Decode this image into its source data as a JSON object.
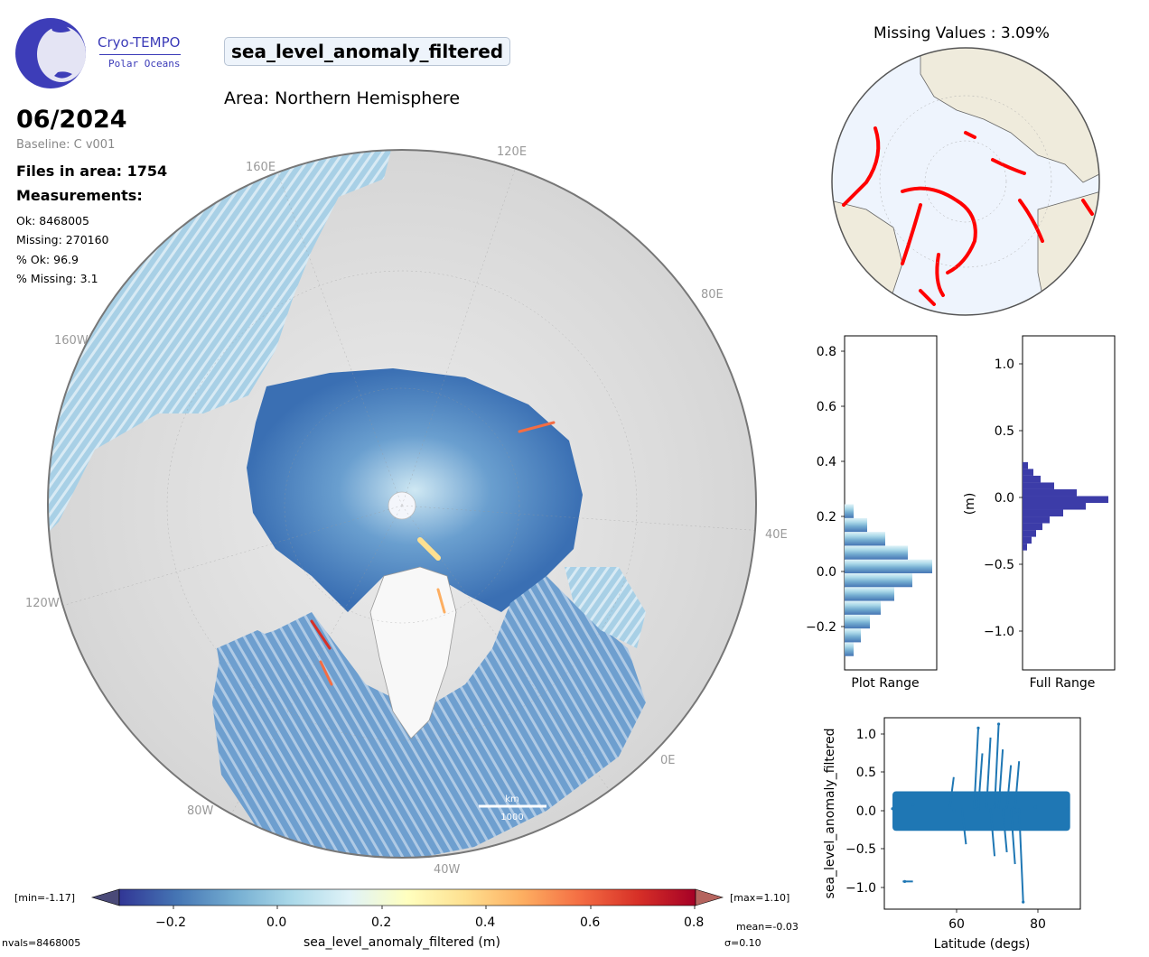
{
  "logo": {
    "line1": "Cryo-TEMPO",
    "line2": "Polar Oceans"
  },
  "variable_name": "sea_level_anomaly_filtered",
  "area_label": "Area: Northern Hemisphere",
  "date": "06/2024",
  "baseline": "Baseline: C v001",
  "files_in_area": "Files in area: 1754",
  "measurements_heading": "Measurements:",
  "stats": {
    "ok": "Ok: 8468005",
    "missing": "Missing: 270160",
    "pct_ok": "% Ok: 96.9",
    "pct_missing": "% Missing: 3.1"
  },
  "map": {
    "grid_labels": {
      "g120e": "120E",
      "g160e": "160E",
      "g80e": "80E",
      "g160w": "160W",
      "g40e": "40E",
      "g120w": "120W",
      "g0e": "0E",
      "g80w": "80W",
      "g40w": "40W"
    },
    "scale_bar": {
      "top": "km",
      "bottom": "1000"
    }
  },
  "colorbar": {
    "min_label": "[min=-1.17]",
    "max_label": "[max=1.10]",
    "ticks": [
      "−0.2",
      "0.0",
      "0.2",
      "0.4",
      "0.6",
      "0.8"
    ],
    "label": "sea_level_anomaly_filtered (m)",
    "nvals": "nvals=8468005",
    "mean": "mean=-0.03",
    "sigma": "σ=0.10"
  },
  "colors": {
    "colormap": [
      "#313695",
      "#4575b4",
      "#74add1",
      "#abd9e9",
      "#e0f3f8",
      "#ffffbf",
      "#fee090",
      "#fdae61",
      "#f46d43",
      "#d73027",
      "#a50026"
    ],
    "missing_marker": "#ff0000",
    "full_range_hist": "#3c3ca8",
    "scatter": "#1f77b4",
    "land": "#efebdc",
    "ocean": "#eef4fd"
  },
  "missing_map": {
    "title": "Missing Values : 3.09%"
  },
  "hist_plot_range": {
    "yticks": [
      "0.8",
      "0.6",
      "0.4",
      "0.2",
      "0.0",
      "−0.2"
    ],
    "xlabel": "Plot Range"
  },
  "hist_full_range": {
    "yticks": [
      "1.0",
      "0.5",
      "0.0",
      "−0.5",
      "−1.0"
    ],
    "ylabel": "(m)",
    "xlabel": "Full Range"
  },
  "chart_data": [
    {
      "type": "bar",
      "title": "",
      "xlabel": "Plot Range",
      "ylabel": "",
      "ylim": [
        -0.35,
        0.86
      ],
      "orientation": "horizontal",
      "bins": [
        -0.3,
        -0.25,
        -0.2,
        -0.15,
        -0.1,
        -0.05,
        0.0,
        0.05,
        0.1,
        0.15,
        0.2
      ],
      "values": [
        0.1,
        0.18,
        0.28,
        0.4,
        0.55,
        0.75,
        0.97,
        0.7,
        0.45,
        0.25,
        0.1
      ]
    },
    {
      "type": "bar",
      "title": "",
      "xlabel": "Full Range",
      "ylabel": "(m)",
      "ylim": [
        -1.23,
        1.23
      ],
      "orientation": "horizontal",
      "bins": [
        -0.35,
        -0.3,
        -0.25,
        -0.2,
        -0.15,
        -0.1,
        -0.05,
        0.0,
        0.05,
        0.1,
        0.15,
        0.2,
        0.25
      ],
      "values": [
        0.05,
        0.1,
        0.15,
        0.22,
        0.3,
        0.45,
        0.7,
        0.95,
        0.6,
        0.35,
        0.2,
        0.12,
        0.06
      ]
    },
    {
      "type": "scatter",
      "title": "",
      "xlabel": "Latitude (degs)",
      "ylabel": "sea_level_anomaly_filtered",
      "xlim": [
        43,
        91
      ],
      "ylim": [
        -1.27,
        1.15
      ],
      "xticks": [
        "60",
        "80"
      ],
      "yticks": [
        "1.0",
        "0.5",
        "0.0",
        "−0.5",
        "−1.0"
      ],
      "series": [
        {
          "values": [
            [
              45,
              0.0
            ],
            [
              50,
              0.05
            ],
            [
              60,
              -0.02
            ],
            [
              66,
              0.0
            ],
            [
              70,
              0.03
            ],
            [
              75,
              -0.05
            ],
            [
              80,
              0.02
            ],
            [
              88,
              0.0
            ],
            [
              66,
              1.02
            ],
            [
              71,
              1.07
            ],
            [
              77,
              -1.18
            ],
            [
              48,
              -0.92
            ]
          ]
        }
      ]
    }
  ]
}
